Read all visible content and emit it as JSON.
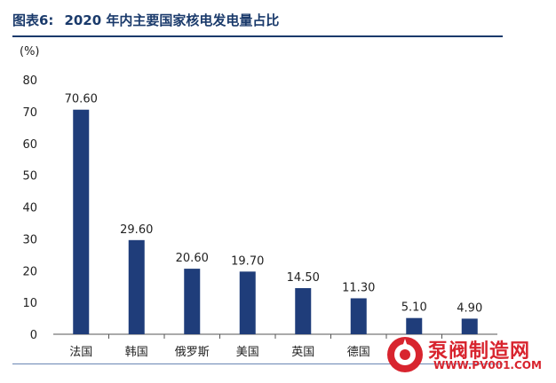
{
  "header": {
    "figure_label": "图表6:",
    "title": "2020 年内主要国家核电发电量占比"
  },
  "chart_data": {
    "type": "bar",
    "unit_label": "(%)",
    "categories": [
      "法国",
      "韩国",
      "俄罗斯",
      "美国",
      "英国",
      "德国",
      "",
      ""
    ],
    "values": [
      70.6,
      29.6,
      20.6,
      19.7,
      14.5,
      11.3,
      5.1,
      4.9
    ],
    "value_labels": [
      "70.60",
      "29.60",
      "20.60",
      "19.70",
      "14.50",
      "11.30",
      "5.10",
      "4.90"
    ],
    "y_ticks": [
      "0",
      "10",
      "20",
      "30",
      "40",
      "50",
      "60",
      "70",
      "80"
    ],
    "ylim": [
      0,
      80
    ],
    "bar_color": "#1f3d7a",
    "grid": false
  },
  "watermark": {
    "brand": "泵阀制造网",
    "site": "WWW.PV001.COM"
  }
}
